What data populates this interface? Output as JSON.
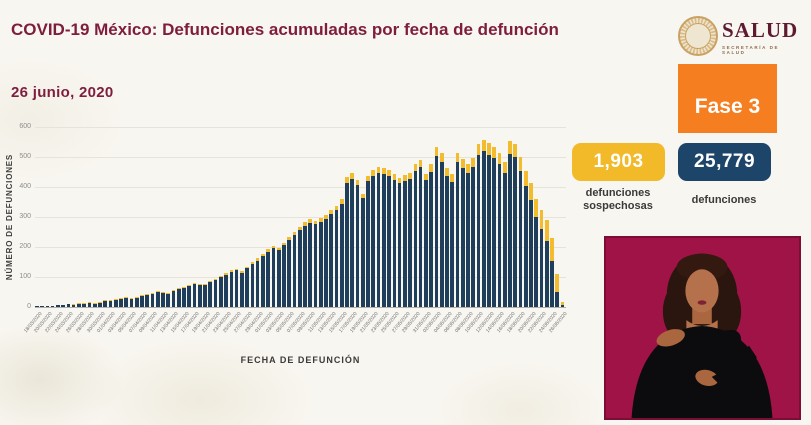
{
  "header": {
    "title": "COVID-19 México: Defunciones acumuladas por fecha de defunción",
    "date": "26  junio, 2020"
  },
  "logo": {
    "name": "SALUD",
    "subtitle": "SECRETARÍA DE SALUD"
  },
  "phase_badge": {
    "label": "Fase 3",
    "color": "#f57e20"
  },
  "stats": [
    {
      "value": "1,903",
      "label": "defunciones sospechosas",
      "color": "#f2b929",
      "text_color": "#ffffff"
    },
    {
      "value": "25,779",
      "label": "defunciones",
      "color": "#1d4569",
      "text_color": "#ffffff"
    }
  ],
  "interpreter": {
    "name": "sign-language-interpreter",
    "bg_color": "#a01346"
  },
  "chart_data": {
    "type": "bar",
    "stacked": true,
    "xlabel": "FECHA DE DEFUNCIÓN",
    "ylabel": "NÚMERO DE DEFUNCIONES",
    "ylim": [
      0,
      600
    ],
    "yticks": [
      0,
      100,
      200,
      300,
      400,
      500,
      600
    ],
    "grid": true,
    "xtick_every": 2,
    "x": [
      "18/03/2020",
      "19/03/2020",
      "20/03/2020",
      "21/03/2020",
      "22/03/2020",
      "23/03/2020",
      "24/03/2020",
      "25/03/2020",
      "26/03/2020",
      "27/03/2020",
      "28/03/2020",
      "29/03/2020",
      "30/03/2020",
      "31/03/2020",
      "01/04/2020",
      "02/04/2020",
      "03/04/2020",
      "04/04/2020",
      "05/04/2020",
      "06/04/2020",
      "07/04/2020",
      "08/04/2020",
      "09/04/2020",
      "10/04/2020",
      "11/04/2020",
      "12/04/2020",
      "13/04/2020",
      "14/04/2020",
      "15/04/2020",
      "16/04/2020",
      "17/04/2020",
      "18/04/2020",
      "19/04/2020",
      "20/04/2020",
      "21/04/2020",
      "22/04/2020",
      "23/04/2020",
      "24/04/2020",
      "25/04/2020",
      "26/04/2020",
      "27/04/2020",
      "28/04/2020",
      "29/04/2020",
      "30/04/2020",
      "01/05/2020",
      "02/05/2020",
      "03/05/2020",
      "04/05/2020",
      "05/05/2020",
      "06/05/2020",
      "07/05/2020",
      "08/05/2020",
      "09/05/2020",
      "10/05/2020",
      "11/05/2020",
      "12/05/2020",
      "13/05/2020",
      "14/05/2020",
      "15/05/2020",
      "16/05/2020",
      "17/05/2020",
      "18/05/2020",
      "19/05/2020",
      "20/05/2020",
      "21/05/2020",
      "22/05/2020",
      "23/05/2020",
      "24/05/2020",
      "25/05/2020",
      "26/05/2020",
      "27/05/2020",
      "28/05/2020",
      "29/05/2020",
      "30/05/2020",
      "31/05/2020",
      "01/06/2020",
      "02/06/2020",
      "03/06/2020",
      "04/06/2020",
      "05/06/2020",
      "06/06/2020",
      "07/06/2020",
      "08/06/2020",
      "09/06/2020",
      "10/06/2020",
      "11/06/2020",
      "12/06/2020",
      "13/06/2020",
      "14/06/2020",
      "15/06/2020",
      "16/06/2020",
      "17/06/2020",
      "18/06/2020",
      "19/06/2020",
      "20/06/2020",
      "21/06/2020",
      "22/06/2020",
      "23/06/2020",
      "24/06/2020",
      "25/06/2020",
      "26/06/2020"
    ],
    "series": [
      {
        "name": "defunciones",
        "color": "#1f3e5c",
        "values": [
          4,
          3,
          5,
          4,
          6,
          8,
          9,
          10,
          12,
          14,
          15,
          14,
          17,
          21,
          24,
          27,
          28,
          31,
          29,
          33,
          37,
          41,
          44,
          49,
          47,
          45,
          53,
          59,
          64,
          70,
          76,
          74,
          72,
          82,
          89,
          99,
          107,
          117,
          122,
          114,
          129,
          143,
          155,
          170,
          184,
          196,
          189,
          206,
          222,
          240,
          257,
          271,
          280,
          276,
          284,
          293,
          309,
          324,
          345,
          414,
          428,
          406,
          363,
          420,
          438,
          448,
          444,
          436,
          424,
          412,
          420,
          426,
          454,
          466,
          422,
          451,
          504,
          484,
          437,
          417,
          482,
          464,
          448,
          466,
          507,
          520,
          508,
          496,
          476,
          447,
          510,
          500,
          452,
          403,
          357,
          300,
          260,
          220,
          155,
          50,
          6
        ]
      },
      {
        "name": "defunciones sospechosas",
        "color": "#f2bc2e",
        "values": [
          0,
          0,
          0,
          0,
          0,
          0,
          0,
          1,
          1,
          1,
          1,
          1,
          1,
          1,
          1,
          1,
          2,
          2,
          2,
          2,
          2,
          2,
          3,
          3,
          3,
          3,
          3,
          3,
          4,
          4,
          4,
          4,
          4,
          4,
          5,
          5,
          5,
          5,
          6,
          6,
          6,
          7,
          7,
          8,
          8,
          9,
          9,
          9,
          10,
          10,
          11,
          11,
          12,
          12,
          12,
          13,
          13,
          14,
          15,
          18,
          18,
          16,
          15,
          18,
          20,
          20,
          20,
          20,
          18,
          18,
          20,
          20,
          22,
          24,
          22,
          25,
          28,
          28,
          25,
          25,
          30,
          28,
          30,
          32,
          35,
          38,
          38,
          36,
          36,
          35,
          42,
          45,
          48,
          52,
          56,
          60,
          65,
          70,
          75,
          60,
          12
        ]
      }
    ]
  }
}
